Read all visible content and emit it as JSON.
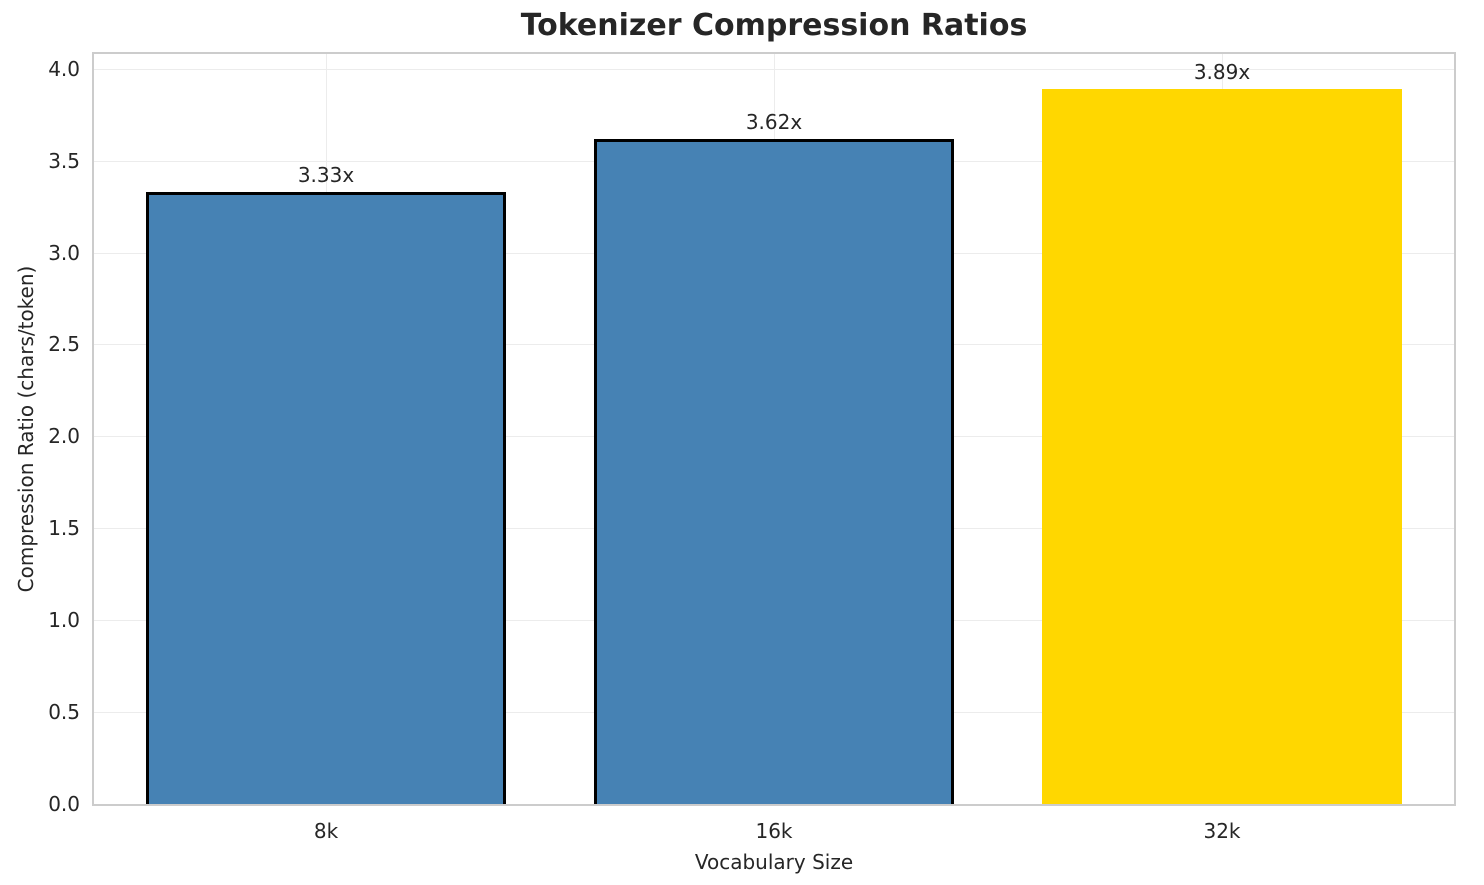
{
  "chart_data": {
    "type": "bar",
    "title": "Tokenizer Compression Ratios",
    "xlabel": "Vocabulary Size",
    "ylabel": "Compression Ratio (chars/token)",
    "categories": [
      "8k",
      "16k",
      "32k"
    ],
    "values": [
      3.33,
      3.62,
      3.89
    ],
    "bar_labels": [
      "3.33x",
      "3.62x",
      "3.89x"
    ],
    "bar_colors": [
      "#4682b4",
      "#4682b4",
      "#ffd700"
    ],
    "bar_edge_colors": [
      "#000000",
      "#000000",
      "none"
    ],
    "ylim": [
      0.0,
      4.08
    ],
    "yticks": [
      0.0,
      0.5,
      1.0,
      1.5,
      2.0,
      2.5,
      3.0,
      3.5,
      4.0
    ],
    "ytick_labels": [
      "0.0",
      "0.5",
      "1.0",
      "1.5",
      "2.0",
      "2.5",
      "3.0",
      "3.5",
      "4.0"
    ],
    "grid": true,
    "legend_position": "none"
  },
  "style": {
    "background": "#ffffff",
    "text_color": "#262626",
    "grid_color": "#ececec",
    "spine_color": "#cccccc",
    "bar_blue": "#4682b4",
    "bar_highlight_gold": "#ffd700",
    "bar_edge_black": "#000000"
  }
}
